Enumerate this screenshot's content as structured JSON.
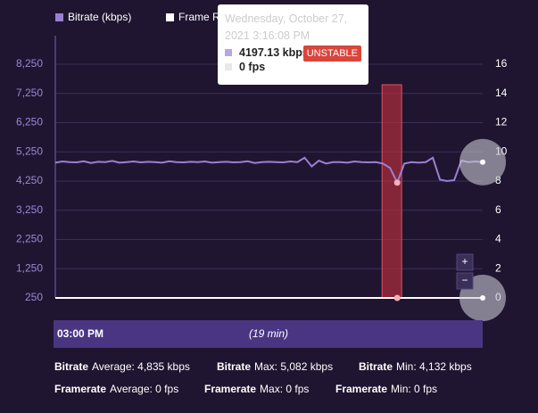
{
  "chart_data": {
    "type": "line",
    "legend": [
      {
        "name": "Bitrate (kbps)",
        "color": "#9b7fd4"
      },
      {
        "name": "Frame Rate (fps)",
        "color": "#ffffff"
      }
    ],
    "series": [
      {
        "name": "Bitrate (kbps)",
        "color": "#9b7fd4",
        "axis": "y",
        "values": [
          4880,
          4920,
          4900,
          4890,
          4930,
          4870,
          4910,
          4900,
          4940,
          4880,
          4900,
          4920,
          4890,
          4910,
          4900,
          4880,
          4930,
          4900,
          4890,
          4910,
          4900,
          4920,
          4880,
          4900,
          4910,
          4890,
          4900,
          4930,
          4870,
          4900,
          4910,
          4900,
          4890,
          4920,
          4900,
          5050,
          4750,
          4950,
          4850,
          4900,
          4900,
          4880,
          4920,
          4900,
          4890,
          4900,
          4850,
          4700,
          4197.13,
          4850,
          4900,
          4880,
          4900,
          5050,
          4300,
          4250,
          4280,
          4950,
          4900,
          4920,
          4900
        ]
      },
      {
        "name": "Frame Rate (fps)",
        "color": "#ffffff",
        "axis": "y2",
        "values": [
          0,
          0,
          0,
          0,
          0,
          0,
          0,
          0,
          0,
          0,
          0,
          0,
          0,
          0,
          0,
          0,
          0,
          0,
          0,
          0,
          0,
          0,
          0,
          0,
          0,
          0,
          0,
          0,
          0,
          0,
          0,
          0,
          0,
          0,
          0,
          0,
          0,
          0,
          0,
          0,
          0,
          0,
          0,
          0,
          0,
          0,
          0,
          0,
          0,
          0,
          0,
          0,
          0,
          0,
          0,
          0,
          0,
          0,
          0,
          0,
          0
        ]
      }
    ],
    "ylim": [
      250,
      8250
    ],
    "yticks": [
      {
        "value": 250,
        "label": "250"
      },
      {
        "value": 1250,
        "label": "1,250"
      },
      {
        "value": 2250,
        "label": "2,250"
      },
      {
        "value": 3250,
        "label": "3,250"
      },
      {
        "value": 4250,
        "label": "4,250"
      },
      {
        "value": 5250,
        "label": "5,250"
      },
      {
        "value": 6250,
        "label": "6,250"
      },
      {
        "value": 7250,
        "label": "7,250"
      },
      {
        "value": 8250,
        "label": "8,250"
      }
    ],
    "y2lim": [
      0,
      16
    ],
    "y2ticks": [
      0,
      2,
      4,
      6,
      8,
      10,
      12,
      14,
      16
    ],
    "grid": true,
    "tooltip": {
      "time": "Wednesday, October 27, 2021 3:16:08 PM",
      "status": "UNSTABLE",
      "bitrate_label": "4197.13 kbps",
      "fps_label": "0 fps"
    },
    "zoom": {
      "in": "+",
      "out": "−"
    },
    "navigator": {
      "start": "03:00 PM",
      "duration": "(19 min)"
    },
    "stats": [
      {
        "label": "Bitrate",
        "text": "Average: 4,835 kbps"
      },
      {
        "label": "Bitrate",
        "text": "Max: 5,082 kbps"
      },
      {
        "label": "Bitrate",
        "text": "Min: 4,132 kbps"
      },
      {
        "label": "Framerate",
        "text": "Average: 0 fps"
      },
      {
        "label": "Framerate",
        "text": "Max: 0 fps"
      },
      {
        "label": "Framerate",
        "text": "Min: 0 fps"
      }
    ]
  }
}
